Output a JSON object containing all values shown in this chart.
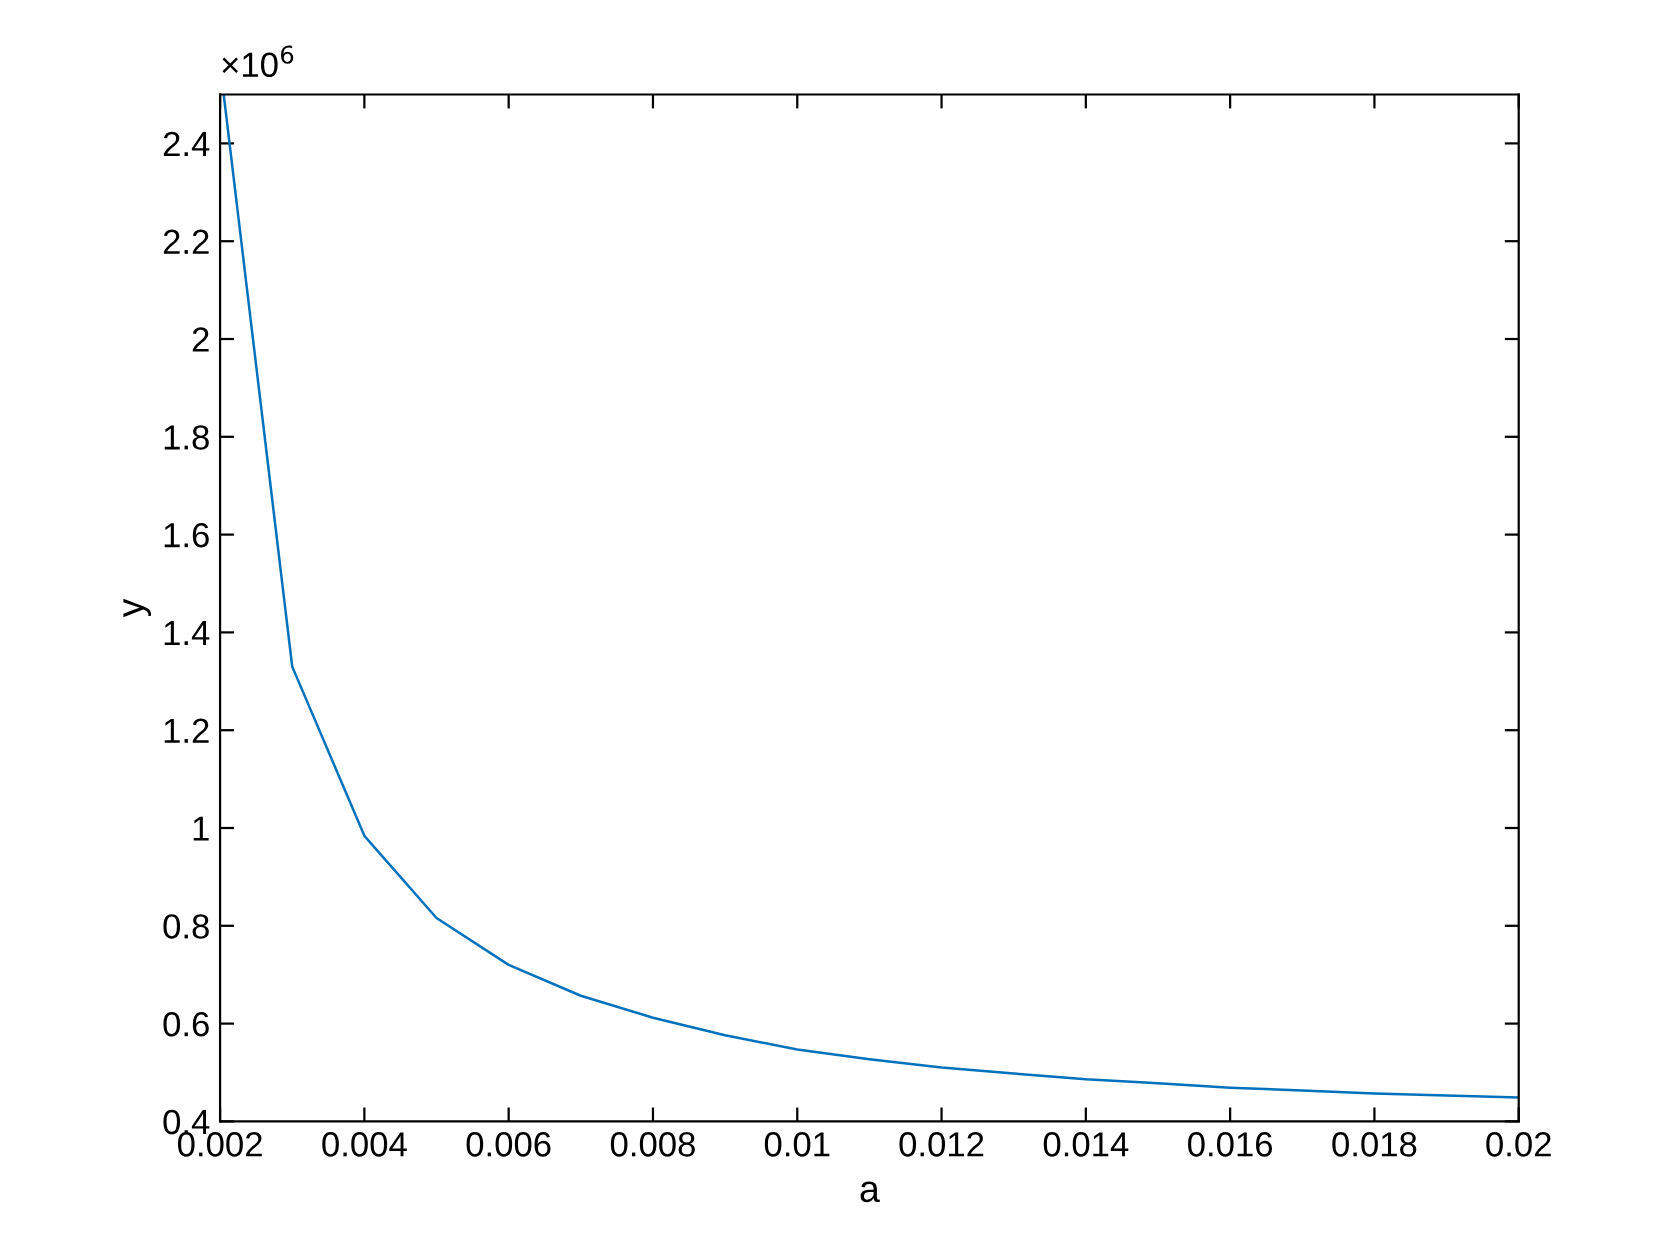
{
  "chart_data": {
    "type": "line",
    "xlabel": "a",
    "ylabel": "y",
    "x": [
      0.00205,
      0.003,
      0.004,
      0.005,
      0.006,
      0.007,
      0.008,
      0.009,
      0.01,
      0.011,
      0.012,
      0.013,
      0.014,
      0.015,
      0.016,
      0.017,
      0.018,
      0.019,
      0.02
    ],
    "series": [
      {
        "color": "#0072bd",
        "values": [
          2.5,
          1.33,
          0.984,
          0.816,
          0.72,
          0.657,
          0.612,
          0.576,
          0.547,
          0.527,
          0.51,
          0.498,
          0.486,
          0.478,
          0.469,
          0.463,
          0.457,
          0.453,
          0.449
        ]
      }
    ],
    "xlim": [
      0.002,
      0.02
    ],
    "xticks": [
      0.002,
      0.004,
      0.006,
      0.008,
      0.01,
      0.012,
      0.014,
      0.016,
      0.018,
      0.02
    ],
    "ylim": [
      0.4,
      2.5
    ],
    "yticks": [
      0.4,
      0.6,
      0.8,
      1,
      1.2,
      1.4,
      1.6,
      1.8,
      2,
      2.2,
      2.4
    ],
    "annotations": [
      "×10$^{6}$"
    ],
    "grid": false,
    "legend": false,
    "marker": "none",
    "line_style": "solid"
  }
}
